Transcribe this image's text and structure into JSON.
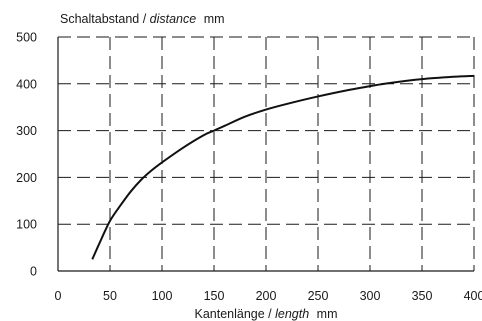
{
  "chart_data": {
    "type": "line",
    "ylabel_main": "Schaltabstand /",
    "ylabel_italic": "distance",
    "ylabel_unit": "mm",
    "xlabel_main": "Kantenlänge /",
    "xlabel_italic": "length",
    "xlabel_unit": "mm",
    "xlim": [
      0,
      400
    ],
    "ylim": [
      0,
      500
    ],
    "x_ticks": [
      0,
      50,
      100,
      150,
      200,
      250,
      300,
      350,
      400
    ],
    "y_ticks": [
      0,
      100,
      200,
      300,
      400,
      500
    ],
    "grid": true,
    "series": [
      {
        "x": [
          33,
          40,
          50,
          60,
          70,
          80,
          90,
          100,
          120,
          140,
          150,
          160,
          180,
          200,
          220,
          250,
          280,
          300,
          320,
          350,
          380,
          400
        ],
        "y": [
          25,
          60,
          107,
          140,
          170,
          195,
          215,
          232,
          263,
          290,
          300,
          310,
          330,
          345,
          357,
          373,
          387,
          395,
          402,
          410,
          415,
          417
        ]
      }
    ]
  }
}
